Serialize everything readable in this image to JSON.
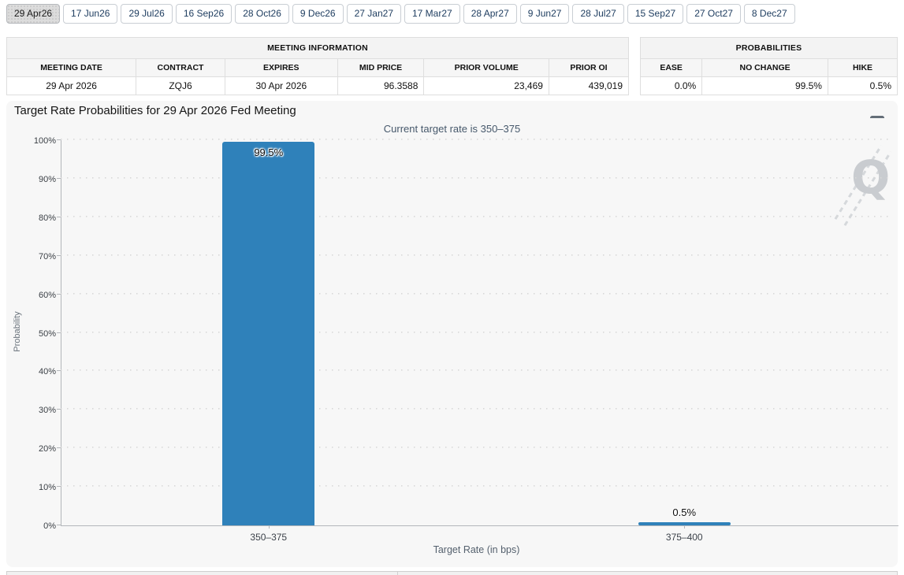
{
  "tabs": {
    "items": [
      {
        "label": "29 Apr26",
        "selected": true
      },
      {
        "label": "17 Jun26",
        "selected": false
      },
      {
        "label": "29 Jul26",
        "selected": false
      },
      {
        "label": "16 Sep26",
        "selected": false
      },
      {
        "label": "28 Oct26",
        "selected": false
      },
      {
        "label": "9 Dec26",
        "selected": false
      },
      {
        "label": "27 Jan27",
        "selected": false
      },
      {
        "label": "17 Mar27",
        "selected": false
      },
      {
        "label": "28 Apr27",
        "selected": false
      },
      {
        "label": "9 Jun27",
        "selected": false
      },
      {
        "label": "28 Jul27",
        "selected": false
      },
      {
        "label": "15 Sep27",
        "selected": false
      },
      {
        "label": "27 Oct27",
        "selected": false
      },
      {
        "label": "8 Dec27",
        "selected": false
      }
    ]
  },
  "meeting_info_table": {
    "caption": "MEETING INFORMATION",
    "columns": [
      "MEETING DATE",
      "CONTRACT",
      "EXPIRES",
      "MID PRICE",
      "PRIOR VOLUME",
      "PRIOR OI"
    ],
    "row": {
      "meeting_date": "29 Apr 2026",
      "contract": "ZQJ6",
      "expires": "30 Apr 2026",
      "mid_price": "96.3588",
      "prior_volume": "23,469",
      "prior_oi": "439,019"
    }
  },
  "probabilities_table": {
    "caption": "PROBABILITIES",
    "columns": [
      "EASE",
      "NO CHANGE",
      "HIKE"
    ],
    "row": {
      "ease": "0.0%",
      "no_change": "99.5%",
      "hike": "0.5%"
    }
  },
  "chart": {
    "title": "Target Rate Probabilities for 29 Apr 2026 Fed Meeting",
    "subtitle": "Current target rate is 350–375",
    "watermark_letter": "Q",
    "menu_icon": "hamburger-menu-icon"
  },
  "chart_data": {
    "type": "bar",
    "categories": [
      "350–375",
      "375–400"
    ],
    "values": [
      99.5,
      0.5
    ],
    "value_labels": [
      "99.5%",
      "0.5%"
    ],
    "title": "Target Rate Probabilities for 29 Apr 2026 Fed Meeting",
    "subtitle": "Current target rate is 350–375",
    "xlabel": "Target Rate (in bps)",
    "ylabel": "Probability",
    "ylim": [
      0,
      100
    ],
    "ytick_step": 10,
    "ytick_labels": [
      "0%",
      "10%",
      "20%",
      "30%",
      "40%",
      "50%",
      "60%",
      "70%",
      "80%",
      "90%",
      "100%"
    ],
    "grid": "dotted-horizontal",
    "legend": "none",
    "bar_color": "#2f81ba"
  },
  "colors": {
    "bar_blue": "#2f81ba",
    "panel_background": "#f7f7f7",
    "tab_text": "#1c3b5e",
    "selected_tab_background": "#dcdcdc",
    "subtitle_text": "#46586b",
    "axis_text": "#3a3f45",
    "watermark_gray": "#c9ccd0"
  }
}
